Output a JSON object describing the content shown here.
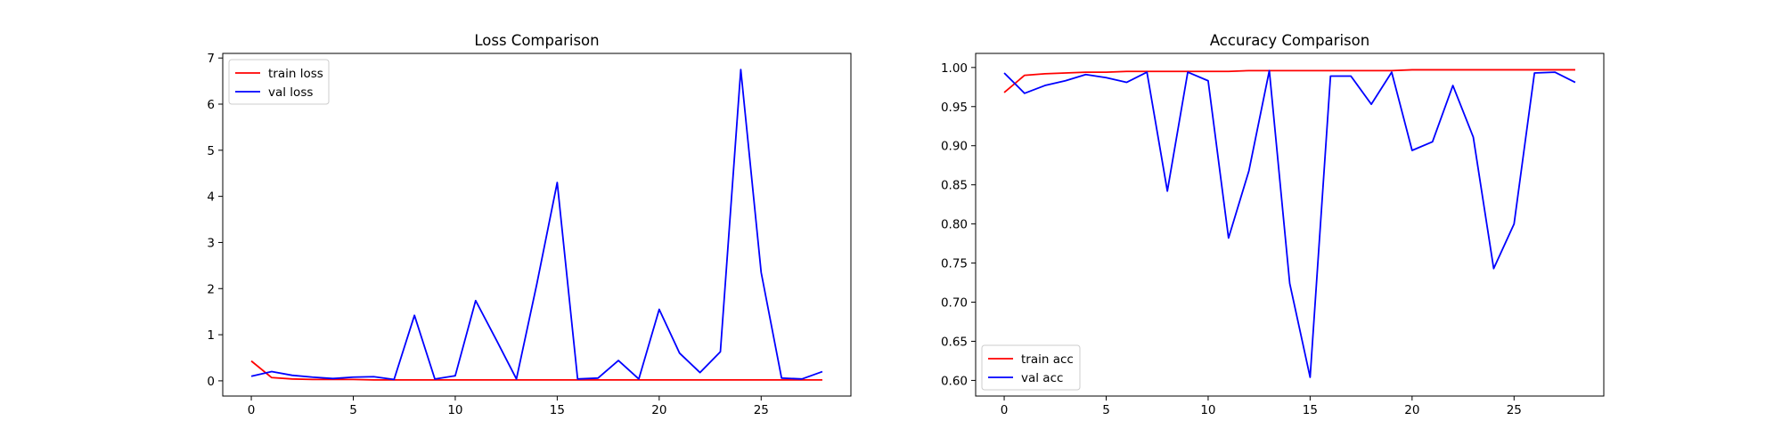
{
  "colors": {
    "train": "#ff0000",
    "val": "#0000ff",
    "frame": "#000000",
    "background": "#ffffff"
  },
  "chart_data": [
    {
      "type": "line",
      "title": "Loss Comparison",
      "xlabel": "",
      "ylabel": "",
      "xlim": [
        -1.4,
        29.4
      ],
      "ylim": [
        -0.33,
        7.1
      ],
      "xticks": [
        0,
        5,
        10,
        15,
        20,
        25
      ],
      "yticks": [
        0,
        1,
        2,
        3,
        4,
        5,
        6,
        7
      ],
      "ytick_labels": [
        "0",
        "1",
        "2",
        "3",
        "4",
        "5",
        "6",
        "7"
      ],
      "grid": false,
      "legend_position": "upper-left",
      "x": [
        0,
        1,
        2,
        3,
        4,
        5,
        6,
        7,
        8,
        9,
        10,
        11,
        12,
        13,
        14,
        15,
        16,
        17,
        18,
        19,
        20,
        21,
        22,
        23,
        24,
        25,
        26,
        27,
        28
      ],
      "series": [
        {
          "name": "train loss",
          "color": "#ff0000",
          "values": [
            0.43,
            0.07,
            0.04,
            0.03,
            0.03,
            0.03,
            0.02,
            0.02,
            0.02,
            0.02,
            0.02,
            0.02,
            0.02,
            0.02,
            0.02,
            0.02,
            0.02,
            0.02,
            0.02,
            0.02,
            0.02,
            0.02,
            0.02,
            0.02,
            0.02,
            0.02,
            0.02,
            0.02,
            0.02
          ]
        },
        {
          "name": "val loss",
          "color": "#0000ff",
          "values": [
            0.1,
            0.2,
            0.12,
            0.08,
            0.05,
            0.08,
            0.09,
            0.03,
            1.42,
            0.04,
            0.11,
            1.74,
            0.9,
            0.04,
            2.1,
            4.3,
            0.04,
            0.06,
            0.44,
            0.04,
            1.55,
            0.6,
            0.18,
            0.63,
            6.75,
            2.35,
            0.06,
            0.04,
            0.2
          ]
        }
      ]
    },
    {
      "type": "line",
      "title": "Accuracy Comparison",
      "xlabel": "",
      "ylabel": "",
      "xlim": [
        -1.4,
        29.4
      ],
      "ylim": [
        0.58,
        1.018
      ],
      "xticks": [
        0,
        5,
        10,
        15,
        20,
        25
      ],
      "yticks": [
        0.6,
        0.65,
        0.7,
        0.75,
        0.8,
        0.85,
        0.9,
        0.95,
        1.0
      ],
      "ytick_labels": [
        "0.60",
        "0.65",
        "0.70",
        "0.75",
        "0.80",
        "0.85",
        "0.90",
        "0.95",
        "1.00"
      ],
      "grid": false,
      "legend_position": "lower-left",
      "x": [
        0,
        1,
        2,
        3,
        4,
        5,
        6,
        7,
        8,
        9,
        10,
        11,
        12,
        13,
        14,
        15,
        16,
        17,
        18,
        19,
        20,
        21,
        22,
        23,
        24,
        25,
        26,
        27,
        28
      ],
      "series": [
        {
          "name": "train acc",
          "color": "#ff0000",
          "values": [
            0.968,
            0.99,
            0.992,
            0.993,
            0.994,
            0.994,
            0.995,
            0.995,
            0.995,
            0.995,
            0.995,
            0.995,
            0.996,
            0.996,
            0.996,
            0.996,
            0.996,
            0.996,
            0.996,
            0.996,
            0.997,
            0.997,
            0.997,
            0.997,
            0.997,
            0.997,
            0.997,
            0.997,
            0.997
          ]
        },
        {
          "name": "val acc",
          "color": "#0000ff",
          "values": [
            0.993,
            0.967,
            0.977,
            0.983,
            0.991,
            0.987,
            0.981,
            0.994,
            0.842,
            0.994,
            0.983,
            0.782,
            0.868,
            0.996,
            0.724,
            0.604,
            0.989,
            0.989,
            0.953,
            0.994,
            0.894,
            0.905,
            0.977,
            0.911,
            0.743,
            0.8,
            0.993,
            0.994,
            0.981
          ]
        }
      ]
    }
  ]
}
